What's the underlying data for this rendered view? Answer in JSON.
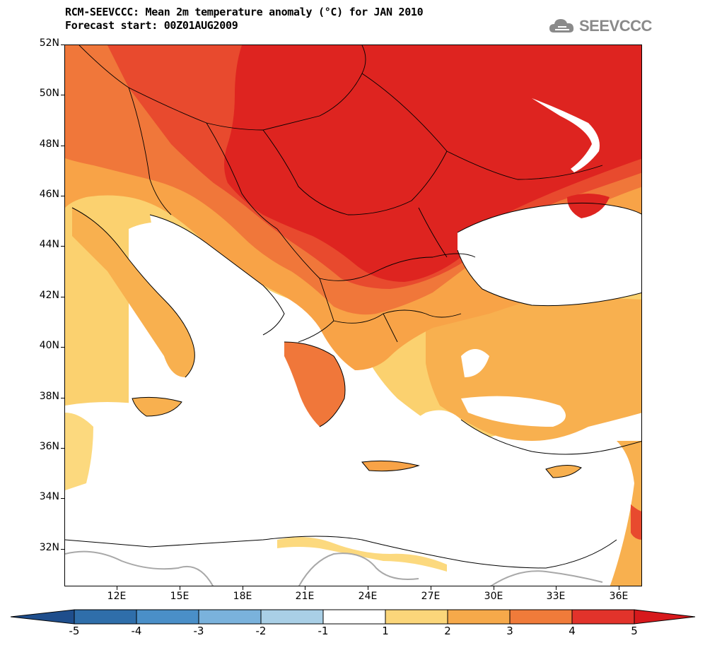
{
  "header": {
    "title_line1": "RCM-SEEVCCC: Mean 2m temperature anomaly (°C) for JAN 2010",
    "title_line2": "Forecast start: 00Z01AUG2009"
  },
  "logo": {
    "text": "SEEVCCC",
    "icon": "cloud-logo-icon"
  },
  "map": {
    "latitude_labels": [
      "52N",
      "50N",
      "48N",
      "46N",
      "44N",
      "42N",
      "40N",
      "38N",
      "36N",
      "34N",
      "32N"
    ],
    "longitude_labels": [
      "12E",
      "15E",
      "18E",
      "21E",
      "24E",
      "27E",
      "30E",
      "33E",
      "36E"
    ]
  },
  "colorbar": {
    "labels": [
      "-5",
      "-4",
      "-3",
      "-2",
      "-1",
      "1",
      "2",
      "3",
      "4",
      "5"
    ],
    "colors": [
      "#1f4e8c",
      "#2f6eaa",
      "#4a8fc8",
      "#7ab2dc",
      "#a9cfe6",
      "#ffffff",
      "#fbd67a",
      "#f6a94a",
      "#f07b3a",
      "#e2332b",
      "#d7191c"
    ]
  },
  "colors": {
    "anomaly_1_2": "#fcd97e",
    "anomaly_2_3": "#f8b04f",
    "anomaly_3_4": "#f2803c",
    "anomaly_4_5": "#e84d2f",
    "anomaly_gt5": "#de2420"
  }
}
